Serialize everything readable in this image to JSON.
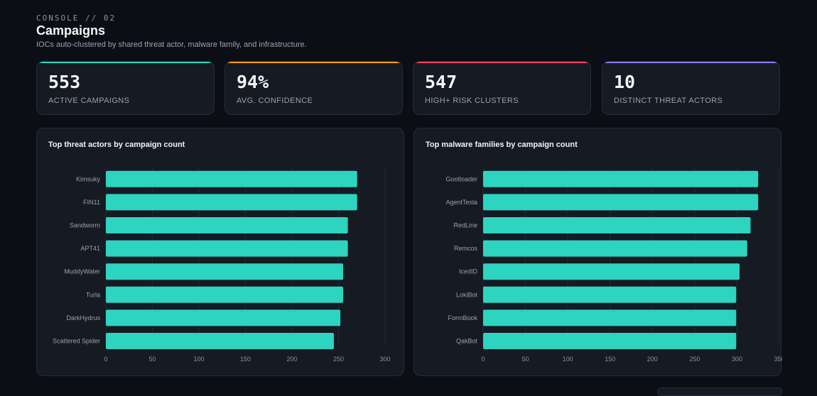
{
  "header": {
    "eyebrow": "CONSOLE // 02",
    "title": "Campaigns",
    "subtitle": "IOCs auto-clustered by shared threat actor, malware family, and infrastructure."
  },
  "stats": [
    {
      "value": "553",
      "label": "ACTIVE CAMPAIGNS",
      "accent": "#2dd4bf"
    },
    {
      "value": "94%",
      "label": "AVG. CONFIDENCE",
      "accent": "#f59e0b"
    },
    {
      "value": "547",
      "label": "HIGH+ RISK CLUSTERS",
      "accent": "#f43f5e"
    },
    {
      "value": "10",
      "label": "DISTINCT THREAT ACTORS",
      "accent": "#8b7cf6"
    }
  ],
  "colors": {
    "bar": "#2dd4bf",
    "grid": "#232a36"
  },
  "chart_data": [
    {
      "type": "bar",
      "orientation": "horizontal",
      "title": "Top threat actors by campaign count",
      "categories": [
        "Kimsuky",
        "FIN11",
        "Sandworm",
        "APT41",
        "MuddyWater",
        "Turla",
        "DarkHydrus",
        "Scattered Spider"
      ],
      "values": [
        270,
        270,
        260,
        260,
        255,
        255,
        252,
        245
      ],
      "xlim": [
        0,
        300
      ],
      "xticks": [
        0,
        50,
        100,
        150,
        200,
        250,
        300
      ],
      "grid": true
    },
    {
      "type": "bar",
      "orientation": "horizontal",
      "title": "Top malware families by campaign count",
      "categories": [
        "Gootloader",
        "AgentTesla",
        "RedLine",
        "Remcos",
        "IcedID",
        "LokiBot",
        "FormBook",
        "QakBot"
      ],
      "values": [
        325,
        325,
        316,
        312,
        303,
        299,
        299,
        299
      ],
      "xlim": [
        0,
        350
      ],
      "xticks": [
        0,
        50,
        100,
        150,
        200,
        250,
        300,
        350
      ],
      "grid": true
    }
  ]
}
